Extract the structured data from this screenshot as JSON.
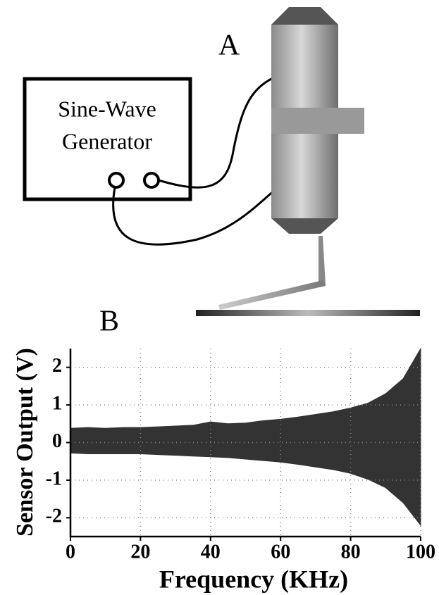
{
  "diagram": {
    "panel_label": "A",
    "box_label": [
      "Sine-Wave",
      "Generator"
    ]
  },
  "chart_data": {
    "type": "area",
    "panel_label": "B",
    "x_label": "Frequency (KHz)",
    "y_label": "Sensor Output (V)",
    "x": [
      0,
      5,
      10,
      15,
      20,
      25,
      30,
      35,
      40,
      45,
      50,
      55,
      60,
      65,
      70,
      75,
      80,
      85,
      90,
      95,
      100
    ],
    "series": [
      {
        "color": "#333333",
        "values": [
          0.38,
          0.4,
          0.38,
          0.4,
          0.4,
          0.42,
          0.44,
          0.46,
          0.55,
          0.5,
          0.52,
          0.58,
          0.62,
          0.68,
          0.75,
          0.82,
          0.92,
          1.05,
          1.3,
          1.7,
          2.5
        ]
      },
      {
        "color": "#333333",
        "values": [
          -0.28,
          -0.3,
          -0.3,
          -0.3,
          -0.3,
          -0.32,
          -0.34,
          -0.36,
          -0.38,
          -0.4,
          -0.44,
          -0.48,
          -0.52,
          -0.58,
          -0.65,
          -0.72,
          -0.82,
          -0.98,
          -1.2,
          -1.6,
          -2.2
        ]
      }
    ],
    "xlim": [
      0,
      100
    ],
    "xticks": [
      0,
      20,
      40,
      60,
      80,
      100
    ],
    "ylim": [
      -2.5,
      2.5
    ],
    "yticks": [
      -2,
      -1,
      0,
      1,
      2
    ],
    "grid": true
  }
}
